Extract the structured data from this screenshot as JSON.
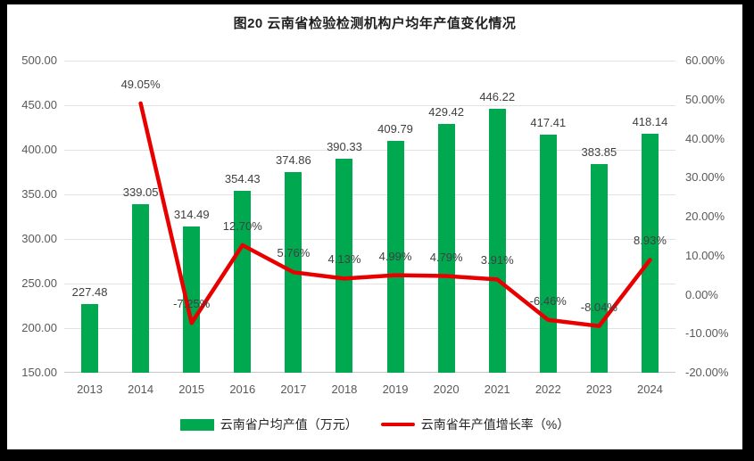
{
  "title": "图20 云南省检验检测机构户均年产值变化情况",
  "colors": {
    "frame": "#000000",
    "background": "#FFFFFF",
    "bar": "#00A94F",
    "line": "#E80000",
    "grid": "#E2E2E2",
    "axis_line": "#C9C9C9",
    "tick_text": "#595959",
    "label_text": "#404040"
  },
  "chart_data": {
    "type": "combo-bar-line",
    "title": "图20 云南省检验检测机构户均年产值变化情况",
    "categories": [
      "2013",
      "2014",
      "2015",
      "2016",
      "2017",
      "2018",
      "2019",
      "2020",
      "2021",
      "2022",
      "2023",
      "2024"
    ],
    "series": [
      {
        "name": "云南省户均产值（万元）",
        "type": "bar",
        "axis": "left",
        "values": [
          227.48,
          339.05,
          314.49,
          354.43,
          374.86,
          390.33,
          409.79,
          429.42,
          446.22,
          417.41,
          383.85,
          418.14
        ],
        "labels": [
          "227.48",
          "339.05",
          "314.49",
          "354.43",
          "374.86",
          "390.33",
          "409.79",
          "429.42",
          "446.22",
          "417.41",
          "383.85",
          "418.14"
        ]
      },
      {
        "name": "云南省年产值增长率（%）",
        "type": "line",
        "axis": "right",
        "values": [
          null,
          49.05,
          -7.25,
          12.7,
          5.76,
          4.13,
          4.99,
          4.79,
          3.91,
          -6.46,
          -8.04,
          8.93
        ],
        "labels": [
          "",
          "49.05%",
          "-7.25%",
          "12.70%",
          "5.76%",
          "4.13%",
          "4.99%",
          "4.79%",
          "3.91%",
          "-6.46%",
          "-8.04%",
          "8.93%"
        ]
      }
    ],
    "left_axis": {
      "min": 150,
      "max": 500,
      "step": 50,
      "tick_labels": [
        "500.00",
        "450.00",
        "400.00",
        "350.00",
        "300.00",
        "250.00",
        "200.00",
        "150.00"
      ]
    },
    "right_axis": {
      "min": -20,
      "max": 60,
      "step": 10,
      "tick_labels": [
        "60.00%",
        "50.00%",
        "40.00%",
        "30.00%",
        "20.00%",
        "10.00%",
        "0.00%",
        "-10.00%",
        "-20.00%"
      ]
    },
    "grid": "horizontal-only",
    "legend_position": "bottom"
  },
  "legend": {
    "items": [
      {
        "label": "云南省户均产值（万元）",
        "swatch": "bar"
      },
      {
        "label": "云南省年产值增长率（%）",
        "swatch": "line"
      }
    ]
  }
}
